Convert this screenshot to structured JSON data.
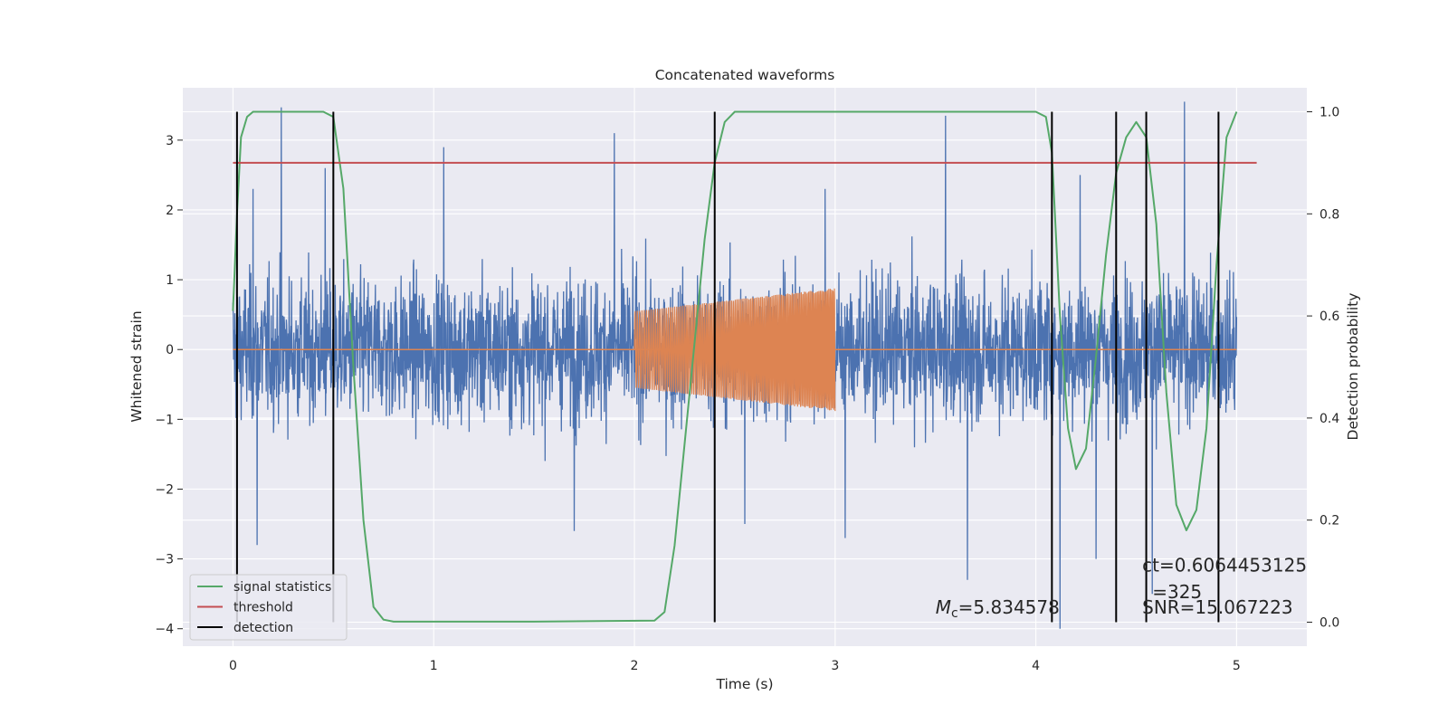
{
  "chart_data": {
    "type": "line",
    "title": "Concatenated waveforms",
    "xlabel": "Time (s)",
    "ylabel": "Whitened strain",
    "y2label": "Detection probability",
    "xlim": [
      -0.25,
      5.35
    ],
    "ylim": [
      -4.25,
      3.75
    ],
    "y2lim": [
      -0.047,
      1.047
    ],
    "xticks": [
      "0",
      "1",
      "2",
      "3",
      "4",
      "5"
    ],
    "yticks": [
      "3",
      "2",
      "1",
      "0",
      "−1",
      "−2",
      "−3",
      "−4"
    ],
    "y2ticks": [
      "1.0",
      "0.8",
      "0.6",
      "0.4",
      "0.2",
      "0.0"
    ],
    "grid": true,
    "legend_placement": "lower-left",
    "legend": [
      {
        "label": "signal statistics",
        "color": "#55a868"
      },
      {
        "label": "threshold",
        "color": "#c44e52"
      },
      {
        "label": "detection",
        "color": "#000000"
      }
    ],
    "series": [
      {
        "role": "noise",
        "color": "#4c72b0",
        "axis": "left",
        "x_range": [
          0,
          5
        ],
        "typical_range": [
          -1.0,
          1.0
        ],
        "peaks_high": [
          [
            0.1,
            2.3
          ],
          [
            0.24,
            3.47
          ],
          [
            0.46,
            2.6
          ],
          [
            1.05,
            2.9
          ],
          [
            1.9,
            3.1
          ],
          [
            2.95,
            2.3
          ],
          [
            3.55,
            3.35
          ],
          [
            4.22,
            2.5
          ],
          [
            4.58,
            3.3
          ],
          [
            4.74,
            3.55
          ]
        ],
        "peaks_low": [
          [
            0.02,
            -2.3
          ],
          [
            0.12,
            -2.8
          ],
          [
            1.7,
            -2.6
          ],
          [
            2.55,
            -2.5
          ],
          [
            3.05,
            -2.7
          ],
          [
            3.66,
            -3.3
          ],
          [
            4.12,
            -4.0
          ],
          [
            4.3,
            -3.0
          ],
          [
            4.58,
            -3.5
          ]
        ]
      },
      {
        "role": "injected-signal",
        "color": "#dd8452",
        "axis": "left",
        "x_range": [
          2.0,
          3.0
        ],
        "amplitude_start": 0.55,
        "amplitude_end": 0.88
      },
      {
        "name": "signal statistics",
        "color": "#55a868",
        "axis": "right",
        "x": [
          0.0,
          0.02,
          0.04,
          0.07,
          0.1,
          0.2,
          0.3,
          0.45,
          0.5,
          0.55,
          0.6,
          0.65,
          0.7,
          0.75,
          0.8,
          1.5,
          2.1,
          2.15,
          2.2,
          2.25,
          2.3,
          2.35,
          2.4,
          2.45,
          2.5,
          2.6,
          4.0,
          4.05,
          4.08,
          4.12,
          4.16,
          4.2,
          4.25,
          4.3,
          4.35,
          4.4,
          4.45,
          4.5,
          4.55,
          4.6,
          4.65,
          4.7,
          4.75,
          4.8,
          4.85,
          4.9,
          4.95,
          5.0
        ],
        "values": [
          0.61,
          0.8,
          0.95,
          0.99,
          1.0,
          1.0,
          1.0,
          1.0,
          0.99,
          0.85,
          0.5,
          0.2,
          0.03,
          0.005,
          0.001,
          0.001,
          0.003,
          0.02,
          0.15,
          0.35,
          0.55,
          0.75,
          0.9,
          0.98,
          1.0,
          1.0,
          1.0,
          0.99,
          0.92,
          0.6,
          0.38,
          0.3,
          0.34,
          0.52,
          0.72,
          0.88,
          0.95,
          0.98,
          0.95,
          0.78,
          0.45,
          0.23,
          0.18,
          0.22,
          0.38,
          0.7,
          0.95,
          1.0
        ]
      },
      {
        "name": "threshold",
        "color": "#c44e52",
        "axis": "right",
        "x": [
          0.0,
          5.1
        ],
        "values": [
          0.9,
          0.9
        ]
      }
    ],
    "detections": [
      0.02,
      0.5,
      2.4,
      4.08,
      4.4,
      4.55,
      4.91
    ],
    "annotations": [
      {
        "text": "M",
        "sub": "c",
        "rest": "=5.834578",
        "x": 3.5,
        "y": -3.78
      },
      {
        "text": "ct=0.6064453125",
        "x": 4.53,
        "y": -3.18
      },
      {
        "text": "=325",
        "x": 4.58,
        "y": -3.56
      },
      {
        "text": "SNR=15.067223",
        "x": 4.53,
        "y": -3.78
      }
    ]
  }
}
